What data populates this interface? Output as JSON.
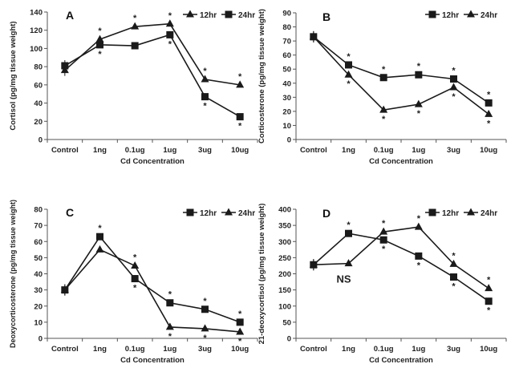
{
  "chart_data": [
    {
      "type": "line",
      "panel": "A",
      "ylabel": "Cortisol (pg/mg tissue weight)",
      "xlabel": "Cd Concentration",
      "categories": [
        "Control",
        "1ng",
        "0.1ug",
        "1ug",
        "3ug",
        "10ug"
      ],
      "ylim": [
        0,
        140
      ],
      "yticks": [
        0,
        20,
        40,
        60,
        80,
        100,
        120,
        140
      ],
      "legend_position": "top-right",
      "series": [
        {
          "name": "12hr",
          "marker": "triangle",
          "values": [
            76,
            110,
            124,
            127,
            66,
            60
          ]
        },
        {
          "name": "24hr",
          "marker": "square",
          "values": [
            81,
            104,
            103,
            115,
            47,
            25
          ]
        }
      ],
      "significance": [
        {
          "series": "12hr",
          "index": 1,
          "text": "*",
          "side": "above"
        },
        {
          "series": "24hr",
          "index": 1,
          "text": "*",
          "side": "below"
        },
        {
          "series": "12hr",
          "index": 2,
          "text": "*",
          "side": "above"
        },
        {
          "series": "12hr",
          "index": 3,
          "text": "*",
          "side": "above"
        },
        {
          "series": "24hr",
          "index": 3,
          "text": "*",
          "side": "below"
        },
        {
          "series": "12hr",
          "index": 4,
          "text": "*",
          "side": "above"
        },
        {
          "series": "24hr",
          "index": 4,
          "text": "*",
          "side": "below"
        },
        {
          "series": "12hr",
          "index": 5,
          "text": "*",
          "side": "above"
        },
        {
          "series": "24hr",
          "index": 5,
          "text": "*",
          "side": "below"
        }
      ],
      "annotations": []
    },
    {
      "type": "line",
      "panel": "B",
      "ylabel": "Corticosterone (pg/mg tissue weight)",
      "xlabel": "Cd Concentration",
      "categories": [
        "Control",
        "1ng",
        "0.1ug",
        "1ug",
        "3ug",
        "10ug"
      ],
      "ylim": [
        0,
        90
      ],
      "yticks": [
        0,
        10,
        20,
        30,
        40,
        50,
        60,
        70,
        80,
        90
      ],
      "legend_position": "top-right",
      "series": [
        {
          "name": "12hr",
          "marker": "square",
          "values": [
            73,
            53,
            44,
            46,
            43,
            26
          ]
        },
        {
          "name": "24hr",
          "marker": "triangle",
          "values": [
            73,
            46,
            21,
            25,
            37,
            18
          ]
        }
      ],
      "significance": [
        {
          "series": "12hr",
          "index": 1,
          "text": "*",
          "side": "above"
        },
        {
          "series": "24hr",
          "index": 1,
          "text": "*",
          "side": "below"
        },
        {
          "series": "12hr",
          "index": 2,
          "text": "*",
          "side": "above"
        },
        {
          "series": "24hr",
          "index": 2,
          "text": "*",
          "side": "below"
        },
        {
          "series": "12hr",
          "index": 3,
          "text": "*",
          "side": "above"
        },
        {
          "series": "24hr",
          "index": 3,
          "text": "*",
          "side": "below"
        },
        {
          "series": "12hr",
          "index": 4,
          "text": "*",
          "side": "above"
        },
        {
          "series": "24hr",
          "index": 4,
          "text": "*",
          "side": "below"
        },
        {
          "series": "12hr",
          "index": 5,
          "text": "*",
          "side": "above"
        },
        {
          "series": "24hr",
          "index": 5,
          "text": "*",
          "side": "below"
        }
      ],
      "annotations": []
    },
    {
      "type": "line",
      "panel": "C",
      "ylabel": "Deoxycorticosterone (pg/mg tissue weight)",
      "xlabel": "Cd Concentration",
      "categories": [
        "Control",
        "1ng",
        "0.1ug",
        "1ug",
        "3ug",
        "10ug"
      ],
      "ylim": [
        0,
        80
      ],
      "yticks": [
        0,
        10,
        20,
        30,
        40,
        50,
        60,
        70,
        80
      ],
      "legend_position": "top-right",
      "series": [
        {
          "name": "12hr",
          "marker": "square",
          "values": [
            30,
            63,
            37,
            22,
            18,
            10
          ]
        },
        {
          "name": "24hr",
          "marker": "triangle",
          "values": [
            30,
            55,
            45,
            7,
            6,
            4
          ]
        }
      ],
      "significance": [
        {
          "series": "12hr",
          "index": 1,
          "text": "*",
          "side": "above"
        },
        {
          "series": "24hr",
          "index": 2,
          "text": "*",
          "side": "above"
        },
        {
          "series": "12hr",
          "index": 2,
          "text": "*",
          "side": "below"
        },
        {
          "series": "12hr",
          "index": 3,
          "text": "*",
          "side": "above"
        },
        {
          "series": "24hr",
          "index": 3,
          "text": "*",
          "side": "below"
        },
        {
          "series": "12hr",
          "index": 4,
          "text": "*",
          "side": "above"
        },
        {
          "series": "24hr",
          "index": 4,
          "text": "*",
          "side": "below"
        },
        {
          "series": "12hr",
          "index": 5,
          "text": "*",
          "side": "above"
        },
        {
          "series": "24hr",
          "index": 5,
          "text": "*",
          "side": "below"
        }
      ],
      "annotations": []
    },
    {
      "type": "line",
      "panel": "D",
      "ylabel": "21-deoxycortisol (pg/mg tissue weight)",
      "xlabel": "Cd Concentration",
      "categories": [
        "Control",
        "1ng",
        "0.1ug",
        "1ug",
        "3ug",
        "10ug"
      ],
      "ylim": [
        0,
        400
      ],
      "yticks": [
        0,
        50,
        100,
        150,
        200,
        250,
        300,
        350,
        400
      ],
      "legend_position": "top-right",
      "series": [
        {
          "name": "12hr",
          "marker": "square",
          "values": [
            228,
            325,
            305,
            255,
            190,
            115
          ]
        },
        {
          "name": "24hr",
          "marker": "triangle",
          "values": [
            228,
            232,
            330,
            345,
            230,
            155
          ]
        }
      ],
      "significance": [
        {
          "series": "12hr",
          "index": 1,
          "text": "*",
          "side": "above"
        },
        {
          "series": "24hr",
          "index": 2,
          "text": "*",
          "side": "above"
        },
        {
          "series": "12hr",
          "index": 2,
          "text": "*",
          "side": "below"
        },
        {
          "series": "24hr",
          "index": 3,
          "text": "*",
          "side": "above"
        },
        {
          "series": "12hr",
          "index": 3,
          "text": "*",
          "side": "below"
        },
        {
          "series": "24hr",
          "index": 4,
          "text": "*",
          "side": "above"
        },
        {
          "series": "12hr",
          "index": 4,
          "text": "*",
          "side": "below"
        },
        {
          "series": "24hr",
          "index": 5,
          "text": "*",
          "side": "above"
        },
        {
          "series": "12hr",
          "index": 5,
          "text": "*",
          "side": "below"
        }
      ],
      "annotations": [
        {
          "text": "NS",
          "series": "24hr",
          "index": 1
        }
      ]
    }
  ],
  "style": {
    "line_color": "#1a1a1a",
    "marker_color": "#1a1a1a",
    "axis_color": "#555555",
    "background": "#ffffff"
  }
}
